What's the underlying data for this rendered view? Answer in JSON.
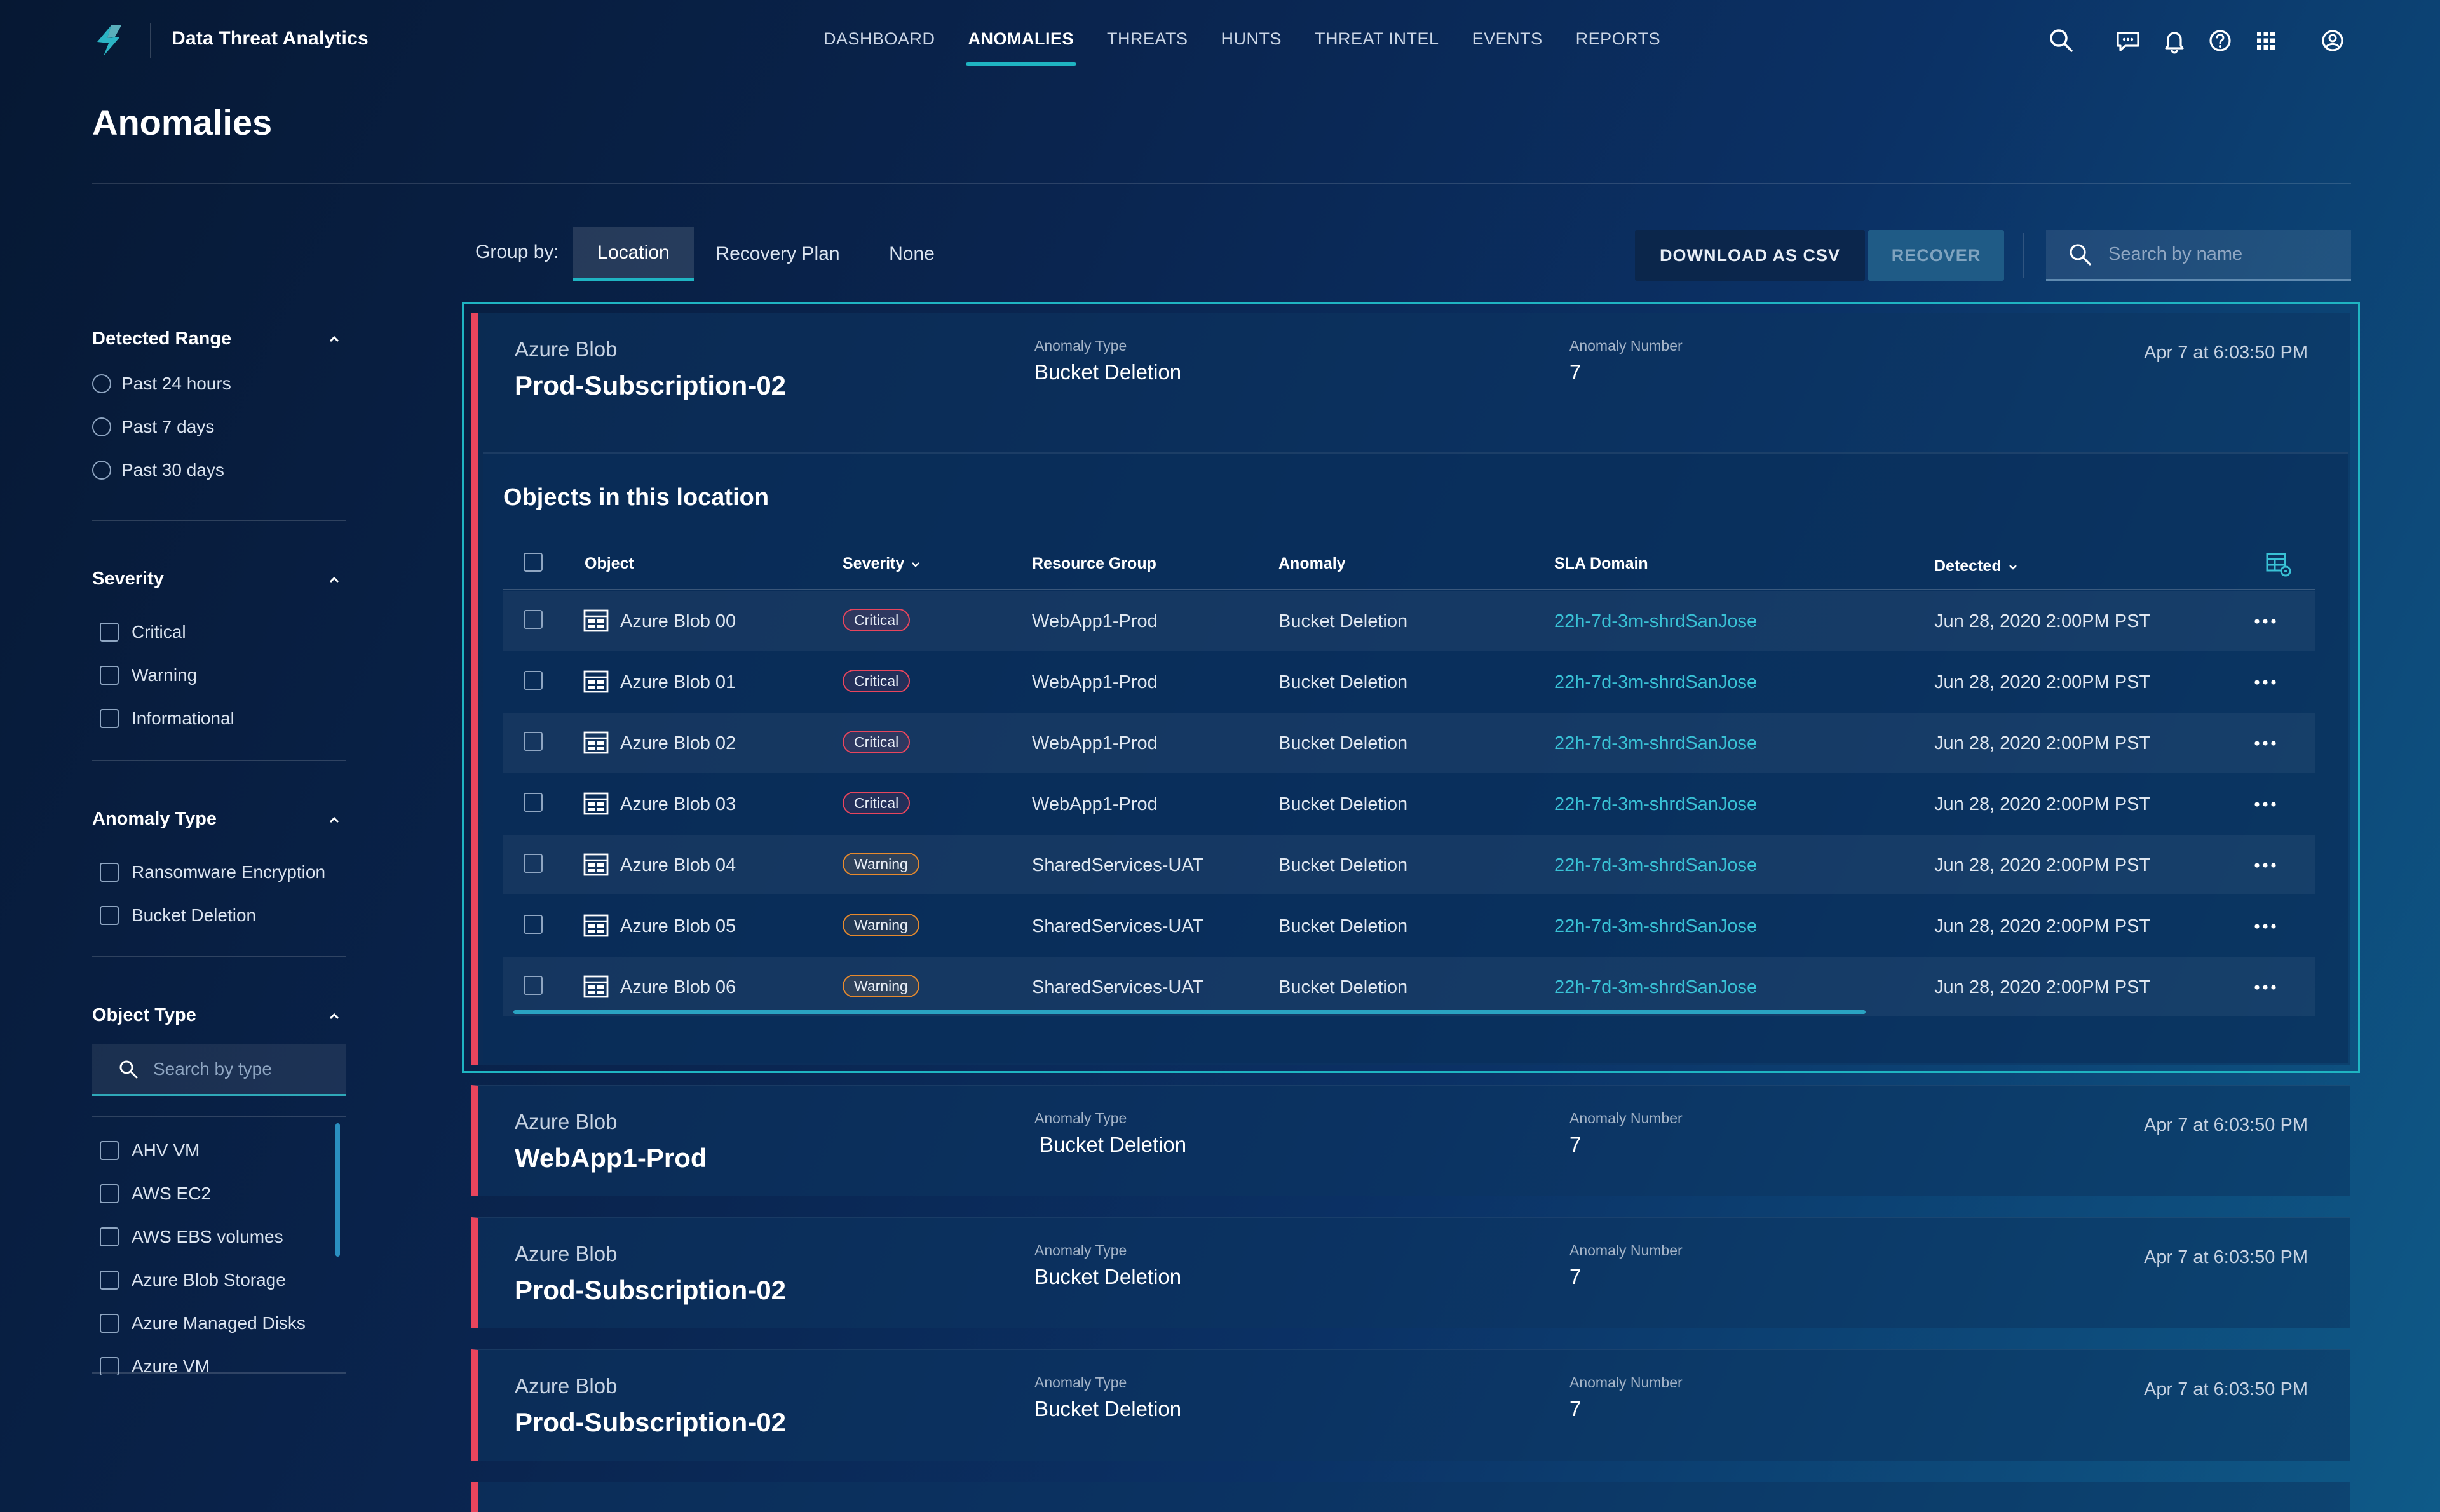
{
  "app": {
    "title": "Data Threat Analytics",
    "accent": "#1fb4c2",
    "critical_color": "#e8455d",
    "warning_color": "#e88a2c"
  },
  "nav": {
    "items": [
      "DASHBOARD",
      "ANOMALIES",
      "THREATS",
      "HUNTS",
      "THREAT INTEL",
      "EVENTS",
      "REPORTS"
    ],
    "active": "ANOMALIES",
    "icons": [
      "search-icon",
      "chat-icon",
      "bell-icon",
      "help-icon",
      "apps-grid-icon",
      "user-icon"
    ]
  },
  "page": {
    "title": "Anomalies"
  },
  "filters": {
    "detected_range": {
      "title": "Detected Range",
      "options": [
        "Past 24 hours",
        "Past 7 days",
        "Past 30 days"
      ]
    },
    "severity": {
      "title": "Severity",
      "options": [
        "Critical",
        "Warning",
        "Informational"
      ]
    },
    "anomaly_type": {
      "title": "Anomaly Type",
      "options": [
        "Ransomware Encryption",
        "Bucket Deletion"
      ]
    },
    "object_type": {
      "title": "Object Type",
      "search_placeholder": "Search by type",
      "options": [
        "AHV VM",
        "AWS EC2",
        "AWS EBS volumes",
        "Azure Blob Storage",
        "Azure Managed Disks",
        "Azure VM"
      ]
    }
  },
  "toolbar": {
    "group_by_label": "Group by:",
    "group_options": [
      "Location",
      "Recovery Plan",
      "None"
    ],
    "group_selected": "Location",
    "download_label": "DOWNLOAD AS CSV",
    "recover_label": "RECOVER",
    "search_placeholder": "Search by name"
  },
  "cards": [
    {
      "source": "Azure Blob",
      "location": "Prod-Subscription-02",
      "anomaly_type_label": "Anomaly Type",
      "anomaly_type": "Bucket Deletion",
      "anomaly_number_label": "Anomaly Number",
      "anomaly_number": "7",
      "time": "Apr 7 at 6:03:50 PM",
      "expanded": true
    },
    {
      "source": "Azure Blob",
      "location": "WebApp1-Prod",
      "anomaly_type_label": "Anomaly Type",
      "anomaly_type": "Bucket Deletion",
      "anomaly_number_label": "Anomaly Number",
      "anomaly_number": "7",
      "time": "Apr 7 at 6:03:50 PM"
    },
    {
      "source": "Azure Blob",
      "location": "Prod-Subscription-02",
      "anomaly_type_label": "Anomaly Type",
      "anomaly_type": "Bucket Deletion",
      "anomaly_number_label": "Anomaly Number",
      "anomaly_number": "7",
      "time": "Apr 7 at 6:03:50 PM"
    },
    {
      "source": "Azure Blob",
      "location": "Prod-Subscription-02",
      "anomaly_type_label": "Anomaly Type",
      "anomaly_type": "Bucket Deletion",
      "anomaly_number_label": "Anomaly Number",
      "anomaly_number": "7",
      "time": "Apr 7 at 6:03:50 PM"
    }
  ],
  "objects_table": {
    "title": "Objects in this location",
    "columns": [
      "Object",
      "Severity",
      "Resource Group",
      "Anomaly",
      "SLA Domain",
      "Detected"
    ],
    "rows": [
      {
        "object": "Azure Blob 00",
        "severity": "Critical",
        "resource_group": "WebApp1-Prod",
        "anomaly": "Bucket Deletion",
        "sla_domain": "22h-7d-3m-shrdSanJose",
        "detected": "Jun 28, 2020 2:00PM PST"
      },
      {
        "object": "Azure Blob 01",
        "severity": "Critical",
        "resource_group": "WebApp1-Prod",
        "anomaly": "Bucket Deletion",
        "sla_domain": "22h-7d-3m-shrdSanJose",
        "detected": "Jun 28, 2020 2:00PM PST"
      },
      {
        "object": "Azure Blob 02",
        "severity": "Critical",
        "resource_group": "WebApp1-Prod",
        "anomaly": "Bucket Deletion",
        "sla_domain": "22h-7d-3m-shrdSanJose",
        "detected": "Jun 28, 2020 2:00PM PST"
      },
      {
        "object": "Azure Blob 03",
        "severity": "Critical",
        "resource_group": "WebApp1-Prod",
        "anomaly": "Bucket Deletion",
        "sla_domain": "22h-7d-3m-shrdSanJose",
        "detected": "Jun 28, 2020 2:00PM PST"
      },
      {
        "object": "Azure Blob 04",
        "severity": "Warning",
        "resource_group": "SharedServices-UAT",
        "anomaly": "Bucket Deletion",
        "sla_domain": "22h-7d-3m-shrdSanJose",
        "detected": "Jun 28, 2020 2:00PM PST"
      },
      {
        "object": "Azure Blob 05",
        "severity": "Warning",
        "resource_group": "SharedServices-UAT",
        "anomaly": "Bucket Deletion",
        "sla_domain": "22h-7d-3m-shrdSanJose",
        "detected": "Jun 28, 2020 2:00PM PST"
      },
      {
        "object": "Azure Blob 06",
        "severity": "Warning",
        "resource_group": "SharedServices-UAT",
        "anomaly": "Bucket Deletion",
        "sla_domain": "22h-7d-3m-shrdSanJose",
        "detected": "Jun 28, 2020 2:00PM PST"
      }
    ]
  }
}
